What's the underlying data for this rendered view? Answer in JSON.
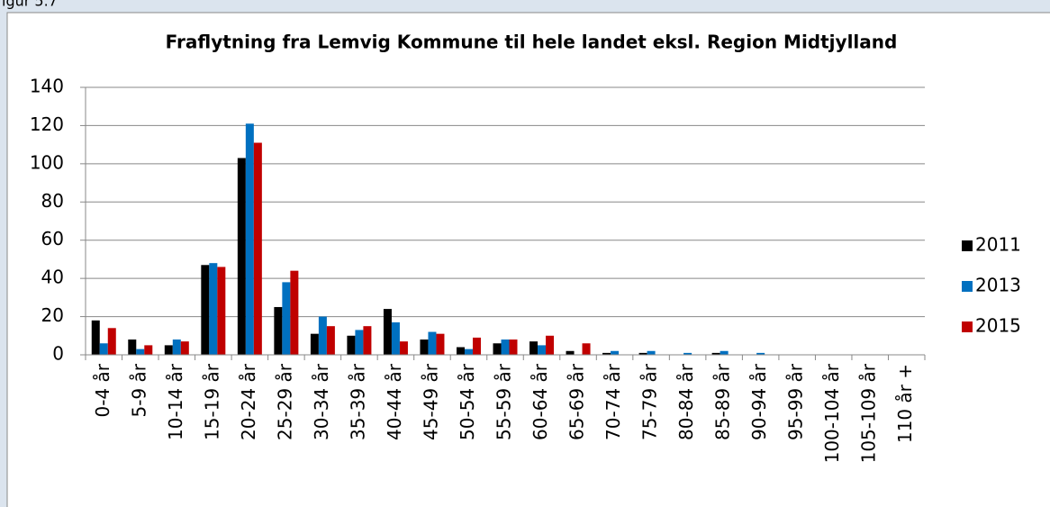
{
  "caption": "igur 5.7",
  "chart_data": {
    "type": "bar",
    "title": "Fraflytning fra Lemvig Kommune til hele landet eksl. Region Midtjylland",
    "categories": [
      "0-4 år",
      "5-9 år",
      "10-14 år",
      "15-19 år",
      "20-24 år",
      "25-29 år",
      "30-34 år",
      "35-39 år",
      "40-44 år",
      "45-49 år",
      "50-54 år",
      "55-59 år",
      "60-64 år",
      "65-69 år",
      "70-74 år",
      "75-79 år",
      "80-84 år",
      "85-89 år",
      "90-94 år",
      "95-99 år",
      "100-104 år",
      "105-109 år",
      "110 år +"
    ],
    "series": [
      {
        "name": "2011",
        "color": "#000000",
        "values": [
          18,
          8,
          5,
          47,
          103,
          25,
          11,
          10,
          24,
          8,
          4,
          6,
          7,
          2,
          1,
          1,
          0,
          1,
          0,
          0,
          0,
          0,
          0
        ]
      },
      {
        "name": "2013",
        "color": "#0070c0",
        "values": [
          6,
          3,
          8,
          48,
          121,
          38,
          20,
          13,
          17,
          12,
          3,
          8,
          5,
          0,
          2,
          2,
          1,
          2,
          1,
          0,
          0,
          0,
          0
        ]
      },
      {
        "name": "2015",
        "color": "#c00000",
        "values": [
          14,
          5,
          7,
          46,
          111,
          44,
          15,
          15,
          7,
          11,
          9,
          8,
          10,
          6,
          0,
          0,
          0,
          0,
          0,
          0,
          0,
          0,
          0
        ]
      }
    ],
    "ylim": [
      0,
      140
    ],
    "yticks": [
      0,
      20,
      40,
      60,
      80,
      100,
      120,
      140
    ],
    "grid": true,
    "legend": "right"
  }
}
